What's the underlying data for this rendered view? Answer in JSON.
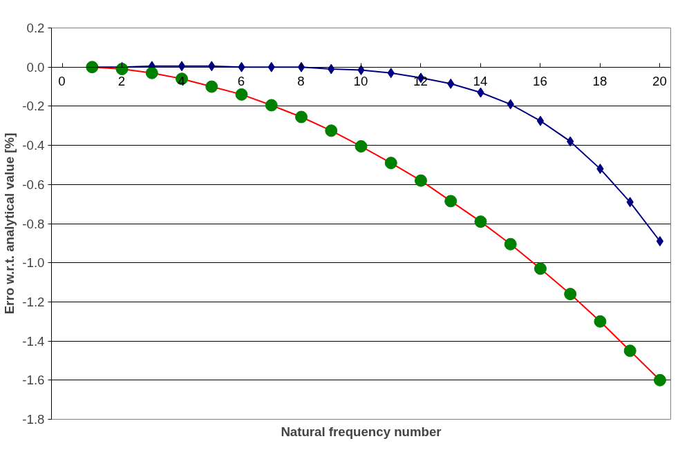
{
  "chart_data": {
    "type": "line",
    "xlabel": "Natural frequency number",
    "ylabel": "Erro w.r.t. analytical value [%]",
    "x": [
      1,
      2,
      3,
      4,
      5,
      6,
      7,
      8,
      9,
      10,
      11,
      12,
      13,
      14,
      15,
      16,
      17,
      18,
      19,
      20
    ],
    "series": [
      {
        "color": "#000080",
        "marker": "diamond",
        "values": [
          0,
          0,
          0.005,
          0.005,
          0.005,
          0,
          0,
          0,
          -0.01,
          -0.015,
          -0.03,
          -0.055,
          -0.085,
          -0.13,
          -0.19,
          -0.275,
          -0.38,
          -0.52,
          -0.69,
          -0.89
        ]
      },
      {
        "color": "#ff0000",
        "marker": "circle",
        "colors": [
          "#008000",
          "#008000",
          "#008000",
          "#008000",
          "#008000",
          "#008000",
          "#008000",
          "#008000",
          "#008000",
          "#008000",
          "#008000",
          "#008000",
          "#008000",
          "#008000",
          "#008000",
          "#008000",
          "#008000",
          "#008000",
          "#008000",
          "#008000"
        ],
        "values": [
          0,
          -0.01,
          -0.03,
          -0.06,
          -0.1,
          -0.14,
          -0.195,
          -0.255,
          -0.325,
          -0.405,
          -0.49,
          -0.58,
          -0.685,
          -0.79,
          -0.905,
          -1.03,
          -1.16,
          -1.3,
          -1.45,
          -1.6
        ]
      }
    ],
    "xlim": [
      0,
      20
    ],
    "xticks": [
      0,
      2,
      4,
      6,
      8,
      10,
      12,
      14,
      16,
      18,
      20
    ],
    "ylim": [
      -1.8,
      0.2
    ],
    "yticks": [
      0.2,
      {
        "value": 0,
        "label": "0.0"
      },
      -0.2,
      -0.4,
      -0.6,
      -0.8,
      {
        "value": -1,
        "label": "-1.0"
      },
      -1.2,
      -1.4,
      -1.6,
      -1.8
    ],
    "grid": "y",
    "legend": false,
    "line_style": "solid"
  }
}
